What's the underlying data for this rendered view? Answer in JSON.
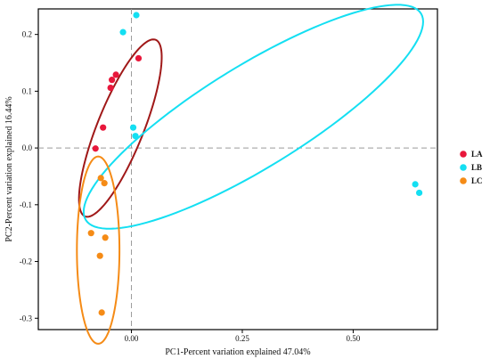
{
  "chart_data": {
    "type": "scatter",
    "title": "",
    "xlabel": "PC1-Percent variation explained 47.04%",
    "ylabel": "PC2-Percent variation explained 16.44%",
    "xlim": [
      -0.21,
      0.69
    ],
    "ylim": [
      -0.32,
      0.245
    ],
    "x_ticks": [
      "0.00",
      "0.25",
      "0.50"
    ],
    "x_tick_values": [
      0,
      0.25,
      0.5
    ],
    "y_ticks": [
      "0.2",
      "0.1",
      "0.0",
      "-0.1",
      "-0.2",
      "-0.3"
    ],
    "y_tick_values": [
      0.2,
      0.1,
      0.0,
      -0.1,
      -0.2,
      -0.3
    ],
    "grid": false,
    "reference_lines": {
      "x": 0,
      "y": 0,
      "style": "dashed"
    },
    "legend_position": "right",
    "series": [
      {
        "name": "LA",
        "color": "#e8173b",
        "x": [
          0.016,
          -0.035,
          -0.044,
          -0.047,
          -0.064,
          -0.081
        ],
        "y": [
          0.158,
          0.129,
          0.12,
          0.106,
          0.036,
          -0.001
        ]
      },
      {
        "name": "LB",
        "color": "#14dff2",
        "x": [
          0.011,
          -0.019,
          0.004,
          0.009,
          0.64,
          0.649
        ],
        "y": [
          0.234,
          0.204,
          0.036,
          0.021,
          -0.064,
          -0.079
        ]
      },
      {
        "name": "LC",
        "color": "#f58b16",
        "x": [
          -0.069,
          -0.061,
          -0.091,
          -0.059,
          -0.071,
          -0.067
        ],
        "y": [
          -0.053,
          -0.062,
          -0.15,
          -0.158,
          -0.19,
          -0.29
        ]
      }
    ],
    "ellipses": [
      {
        "series": "LA",
        "color": "#a01818",
        "cx": -0.025,
        "cy": 0.035,
        "rx": 0.175,
        "ry": 0.05,
        "angle_deg": 62
      },
      {
        "series": "LB",
        "color": "#14dff2",
        "cx": 0.275,
        "cy": 0.055,
        "rx": 0.42,
        "ry": 0.095,
        "angle_deg": 25
      },
      {
        "series": "LC",
        "color": "#f58b16",
        "cx": -0.075,
        "cy": -0.18,
        "rx": 0.048,
        "ry": 0.165,
        "angle_deg": 0
      }
    ]
  }
}
